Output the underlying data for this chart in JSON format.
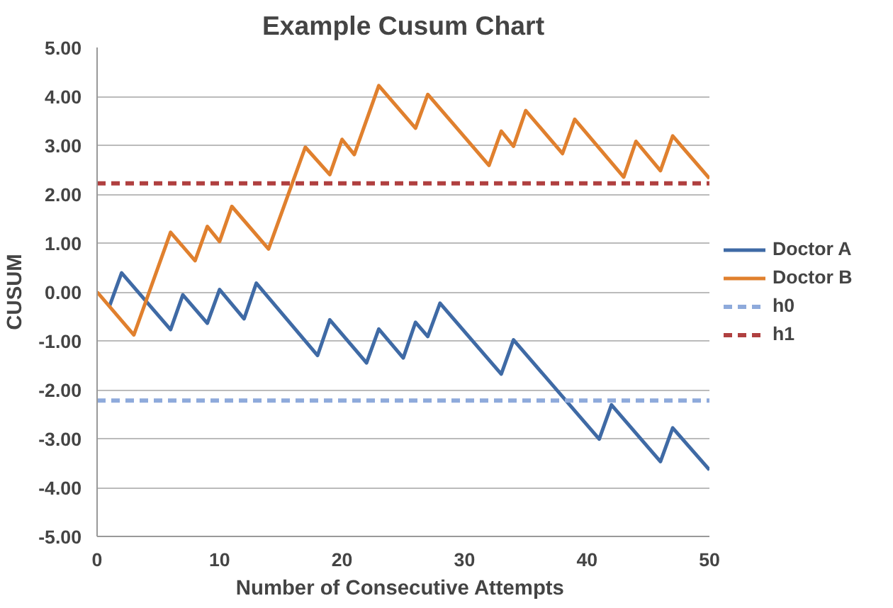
{
  "chart_data": {
    "type": "line",
    "title": "Example Cusum Chart",
    "xlabel": "Number of  Consecutive Attempts",
    "ylabel": "CUSUM",
    "xlim": [
      0,
      50
    ],
    "xticks": [
      0,
      10,
      20,
      30,
      40,
      50
    ],
    "ylim": [
      -5,
      5
    ],
    "yticks": [
      {
        "value": -5,
        "label": "-5.00"
      },
      {
        "value": -4,
        "label": "-4.00"
      },
      {
        "value": -3,
        "label": "-3.00"
      },
      {
        "value": -2,
        "label": "-2.00"
      },
      {
        "value": -1,
        "label": "-1.00"
      },
      {
        "value": 0,
        "label": "0.00"
      },
      {
        "value": 1,
        "label": "1.00"
      },
      {
        "value": 2,
        "label": "2.00"
      },
      {
        "value": 3,
        "label": "3.00"
      },
      {
        "value": 4,
        "label": "4.00"
      },
      {
        "value": 5,
        "label": "5.00"
      }
    ],
    "grid": "y",
    "legend": "right",
    "marker": "none",
    "series": [
      {
        "name": "Doctor A",
        "color": "#3f6aa5",
        "line_style": "solid",
        "x": [
          1,
          2,
          6,
          7,
          9,
          10,
          12,
          13,
          18,
          19,
          22,
          23,
          25,
          26,
          27,
          28,
          33,
          34,
          41,
          42,
          46,
          47,
          50
        ],
        "values": [
          -0.3,
          0.39,
          -0.77,
          -0.06,
          -0.64,
          0.05,
          -0.55,
          0.18,
          -1.3,
          -0.57,
          -1.45,
          -0.76,
          -1.35,
          -0.62,
          -0.91,
          -0.23,
          -1.68,
          -0.98,
          -3.01,
          -2.31,
          -3.47,
          -2.78,
          -3.64
        ]
      },
      {
        "name": "Doctor B",
        "color": "#e0802e",
        "line_style": "solid",
        "x": [
          0,
          3,
          6,
          8,
          9,
          10,
          11,
          14,
          17,
          19,
          20,
          21,
          23,
          26,
          27,
          32,
          33,
          34,
          35,
          38,
          39,
          43,
          44,
          46,
          47,
          50
        ],
        "values": [
          0,
          -0.88,
          1.22,
          0.64,
          1.34,
          1.03,
          1.75,
          0.88,
          2.96,
          2.4,
          3.12,
          2.81,
          4.22,
          3.35,
          4.04,
          2.59,
          3.29,
          2.98,
          3.71,
          2.83,
          3.53,
          2.35,
          3.08,
          2.48,
          3.19,
          2.32
        ]
      },
      {
        "name": "h0",
        "color": "#8eaadb",
        "line_style": "dashed",
        "x": [
          0,
          50
        ],
        "values": [
          -2.22,
          -2.22
        ]
      },
      {
        "name": "h1",
        "color": "#b04040",
        "line_style": "dashed",
        "x": [
          0,
          50
        ],
        "values": [
          2.22,
          2.22
        ]
      }
    ]
  }
}
